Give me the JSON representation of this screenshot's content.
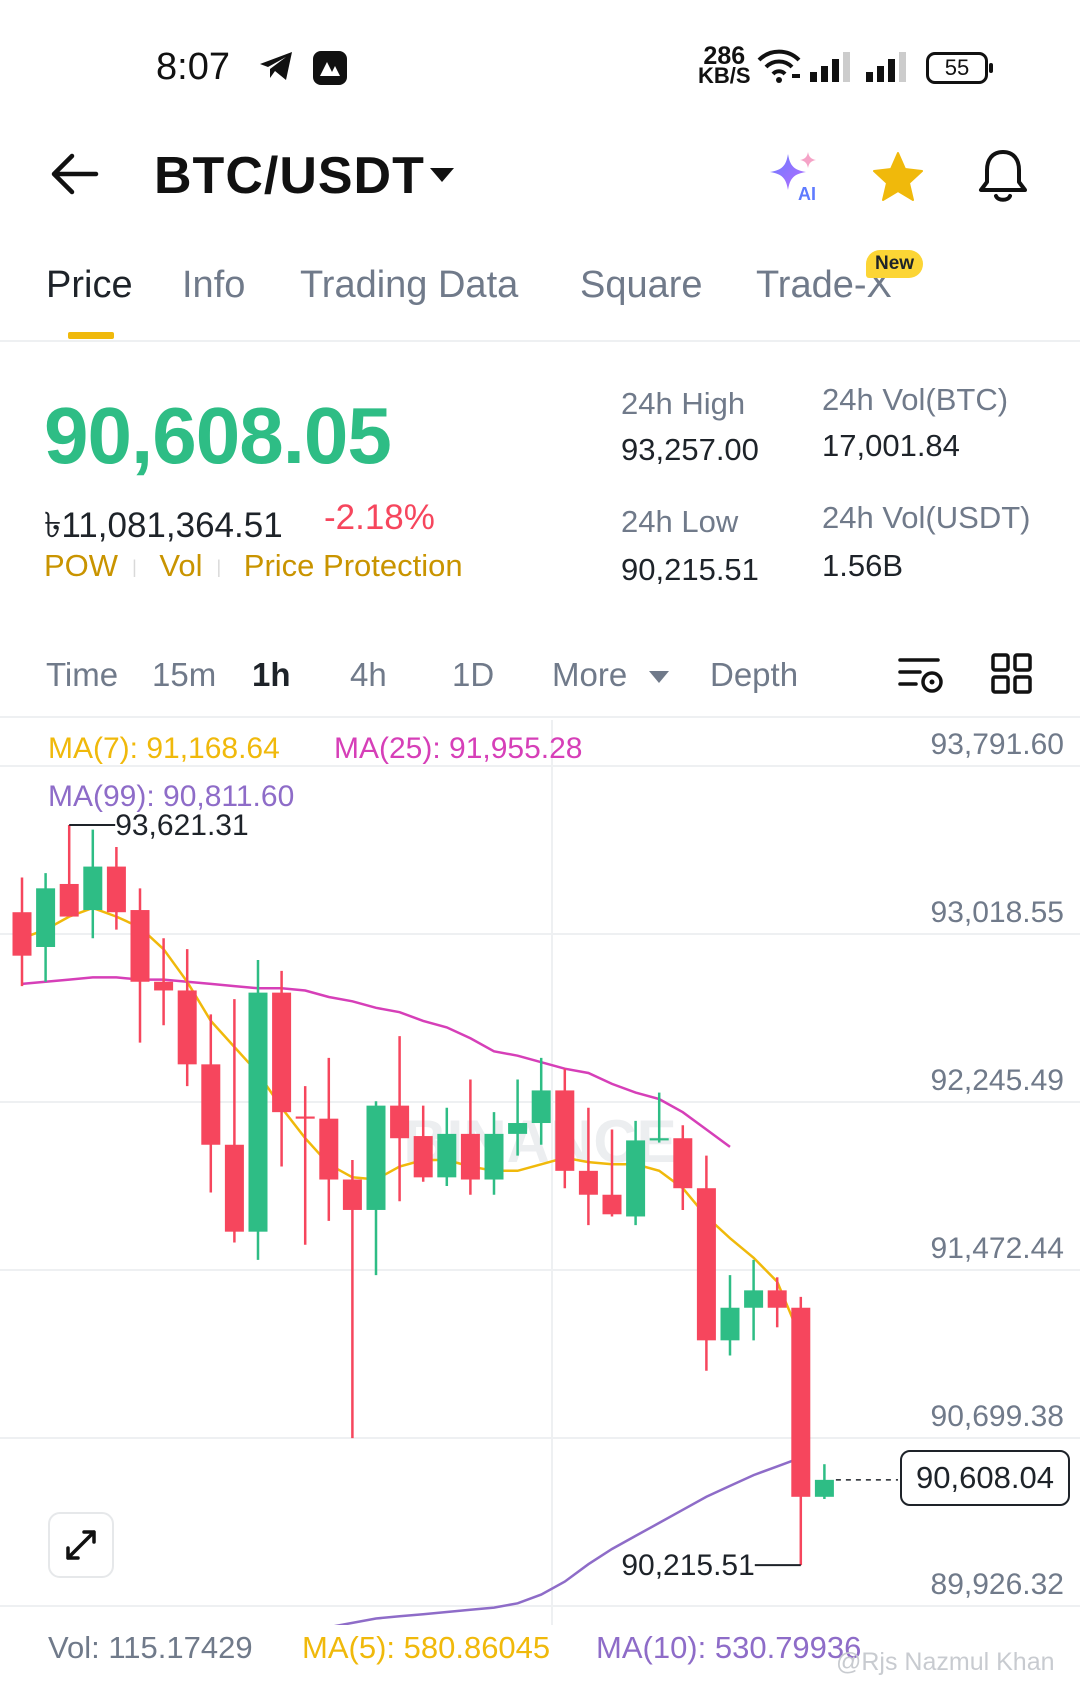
{
  "status_bar": {
    "time": "8:07",
    "net_speed_value": "286",
    "net_speed_unit": "KB/S",
    "battery": "55",
    "icons": [
      "telegram-icon",
      "app-icon",
      "wifi-icon",
      "signal-icon",
      "signal-icon",
      "battery-icon"
    ]
  },
  "header": {
    "pair": "BTC/USDT",
    "icons": [
      "back-arrow-icon",
      "caret-down-icon",
      "ai-sparkle-icon",
      "star-icon",
      "bell-icon"
    ],
    "ai_label": "AI"
  },
  "tabs": [
    {
      "label": "Price",
      "active": true
    },
    {
      "label": "Info"
    },
    {
      "label": "Trading Data"
    },
    {
      "label": "Square"
    },
    {
      "label": "Trade-X",
      "badge": "New"
    }
  ],
  "ticker": {
    "last_price": "90,608.05",
    "fiat_value": "৳11,081,364.51",
    "change_pct": "-2.18%",
    "tags": [
      "POW",
      "Vol",
      "Price Protection"
    ],
    "stats": {
      "high_label": "24h High",
      "high_value": "93,257.00",
      "vol_btc_label": "24h Vol(BTC)",
      "vol_btc_value": "17,001.84",
      "low_label": "24h Low",
      "low_value": "90,215.51",
      "vol_usdt_label": "24h Vol(USDT)",
      "vol_usdt_value": "1.56B"
    }
  },
  "toolbar": {
    "items": [
      "Time",
      "15m",
      "1h",
      "4h",
      "1D",
      "More",
      "Depth"
    ],
    "active": "1h",
    "icons": [
      "chart-settings-icon",
      "grid-layout-icon"
    ]
  },
  "chart_data": {
    "type": "candlestick",
    "interval": "1h",
    "ma_labels": {
      "ma7": "MA(7): 91,168.64",
      "ma25": "MA(25): 91,955.28",
      "ma99": "MA(99): 90,811.60"
    },
    "y_ticks": [
      "93,791.60",
      "93,018.55",
      "92,245.49",
      "91,472.44",
      "90,699.38",
      "89,926.32"
    ],
    "y_tick_values": [
      93791.6,
      93018.55,
      92245.49,
      91472.44,
      90699.38,
      89926.32
    ],
    "high_marker": "93,621.31",
    "low_marker": "90,215.51",
    "current_price": "90,608.04",
    "colors": {
      "up": "#2ebd85",
      "down": "#f6465d",
      "ma7": "#f0b90b",
      "ma25": "#d63fb8",
      "ma99": "#8e6cc8"
    },
    "candles": [
      [
        93220,
        93380,
        92880,
        93020
      ],
      [
        93060,
        93400,
        92900,
        93330
      ],
      [
        93350,
        93621.31,
        93220,
        93200
      ],
      [
        93230,
        93600,
        93100,
        93430
      ],
      [
        93430,
        93520,
        93140,
        93220
      ],
      [
        93230,
        93330,
        92620,
        92900
      ],
      [
        92900,
        93100,
        92700,
        92860
      ],
      [
        92860,
        93050,
        92420,
        92520
      ],
      [
        92520,
        92750,
        91930,
        92150
      ],
      [
        92150,
        92820,
        91700,
        91750
      ],
      [
        91750,
        93000,
        91620,
        92850
      ],
      [
        92850,
        92950,
        92050,
        92300
      ],
      [
        92280,
        92420,
        91690,
        92270
      ],
      [
        92270,
        92550,
        91800,
        91990
      ],
      [
        91990,
        92080,
        90800,
        91850
      ],
      [
        91850,
        92350,
        91550,
        92330
      ],
      [
        92330,
        92650,
        91890,
        92180
      ],
      [
        92190,
        92330,
        91980,
        92000
      ],
      [
        92000,
        92320,
        91960,
        92200
      ],
      [
        92200,
        92450,
        91920,
        91990
      ],
      [
        91990,
        92300,
        91920,
        92200
      ],
      [
        92200,
        92450,
        92100,
        92250
      ],
      [
        92250,
        92550,
        92150,
        92400
      ],
      [
        92400,
        92500,
        91950,
        92030
      ],
      [
        92030,
        92320,
        91780,
        91920
      ],
      [
        91920,
        92220,
        91820,
        91830
      ],
      [
        91820,
        92260,
        91780,
        92170
      ],
      [
        92170,
        92390,
        92160,
        92180
      ],
      [
        92180,
        92240,
        91850,
        91950
      ],
      [
        91950,
        92100,
        91110,
        91250
      ],
      [
        91250,
        91550,
        91180,
        91400
      ],
      [
        91400,
        91620,
        91250,
        91480
      ],
      [
        91480,
        91540,
        91310,
        91400
      ],
      [
        91400,
        91450,
        90215.51,
        90530
      ],
      [
        90530,
        90680,
        90520,
        90608.04
      ]
    ],
    "ma7": [
      93100,
      93140,
      93200,
      93240,
      93200,
      93150,
      93050,
      92900,
      92720,
      92600,
      92480,
      92320,
      92180,
      92060,
      92000,
      91990,
      92050,
      92080,
      92080,
      92050,
      92030,
      92030,
      92060,
      92090,
      92070,
      92060,
      92060,
      92030,
      91950,
      91820,
      91720,
      91630,
      91520,
      91260
    ],
    "ma25": [
      92890,
      92900,
      92910,
      92920,
      92920,
      92910,
      92910,
      92900,
      92890,
      92880,
      92870,
      92870,
      92860,
      92830,
      92810,
      92780,
      92760,
      92720,
      92690,
      92640,
      92580,
      92560,
      92530,
      92500,
      92480,
      92430,
      92390,
      92360,
      92300,
      92220,
      92140
    ],
    "ma99": [
      89880,
      89930,
      89950,
      89970,
      89980,
      89990,
      90000,
      90010,
      90020,
      90040,
      90080,
      90140,
      90220,
      90290,
      90350,
      90410,
      90470,
      90530,
      90580,
      90630,
      90670,
      90710
    ]
  },
  "volume": {
    "vol_label": "Vol: 115.17429",
    "ma5_label": "MA(5): 580.86045",
    "ma10_label": "MA(10): 530.79936"
  },
  "watermark_text": "@Rjs Nazmul Khan"
}
